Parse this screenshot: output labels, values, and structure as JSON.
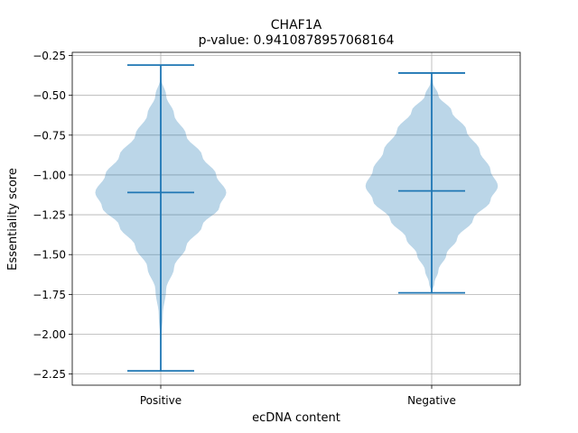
{
  "chart_data": {
    "type": "violin",
    "title": "CHAF1A",
    "subtitle": "p-value: 0.9410878957068164",
    "xlabel": "ecDNA content",
    "ylabel": "Essentiality score",
    "categories": [
      "Positive",
      "Negative"
    ],
    "ylim": [
      -2.32,
      -0.23
    ],
    "yticks": [
      -0.25,
      -0.5,
      -0.75,
      -1.0,
      -1.25,
      -1.5,
      -1.75,
      -2.0,
      -2.25
    ],
    "ytick_labels": [
      "−0.25",
      "−0.50",
      "−0.75",
      "−1.00",
      "−1.25",
      "−1.50",
      "−1.75",
      "−2.00",
      "−2.25"
    ],
    "grid": true,
    "colors": {
      "body": "#1f77b4",
      "line": "#1f77b4"
    },
    "violins": [
      {
        "category": "Positive",
        "min": -2.23,
        "max": -0.31,
        "median": -1.11,
        "density_profile": [
          [
            -0.31,
            0.0
          ],
          [
            -0.4,
            0.01
          ],
          [
            -0.5,
            0.08
          ],
          [
            -0.62,
            0.2
          ],
          [
            -0.75,
            0.38
          ],
          [
            -0.88,
            0.62
          ],
          [
            -1.0,
            0.83
          ],
          [
            -1.11,
            0.98
          ],
          [
            -1.2,
            0.88
          ],
          [
            -1.32,
            0.62
          ],
          [
            -1.45,
            0.38
          ],
          [
            -1.58,
            0.2
          ],
          [
            -1.72,
            0.08
          ],
          [
            -1.88,
            0.03
          ],
          [
            -2.02,
            0.01
          ],
          [
            -2.23,
            0.0
          ]
        ]
      },
      {
        "category": "Negative",
        "min": -1.74,
        "max": -0.36,
        "median": -1.1,
        "density_profile": [
          [
            -0.36,
            0.0
          ],
          [
            -0.42,
            0.02
          ],
          [
            -0.5,
            0.1
          ],
          [
            -0.6,
            0.3
          ],
          [
            -0.72,
            0.52
          ],
          [
            -0.85,
            0.72
          ],
          [
            -0.97,
            0.88
          ],
          [
            -1.07,
            0.99
          ],
          [
            -1.16,
            0.88
          ],
          [
            -1.28,
            0.62
          ],
          [
            -1.4,
            0.38
          ],
          [
            -1.5,
            0.22
          ],
          [
            -1.6,
            0.1
          ],
          [
            -1.68,
            0.04
          ],
          [
            -1.74,
            0.0
          ]
        ]
      }
    ]
  }
}
